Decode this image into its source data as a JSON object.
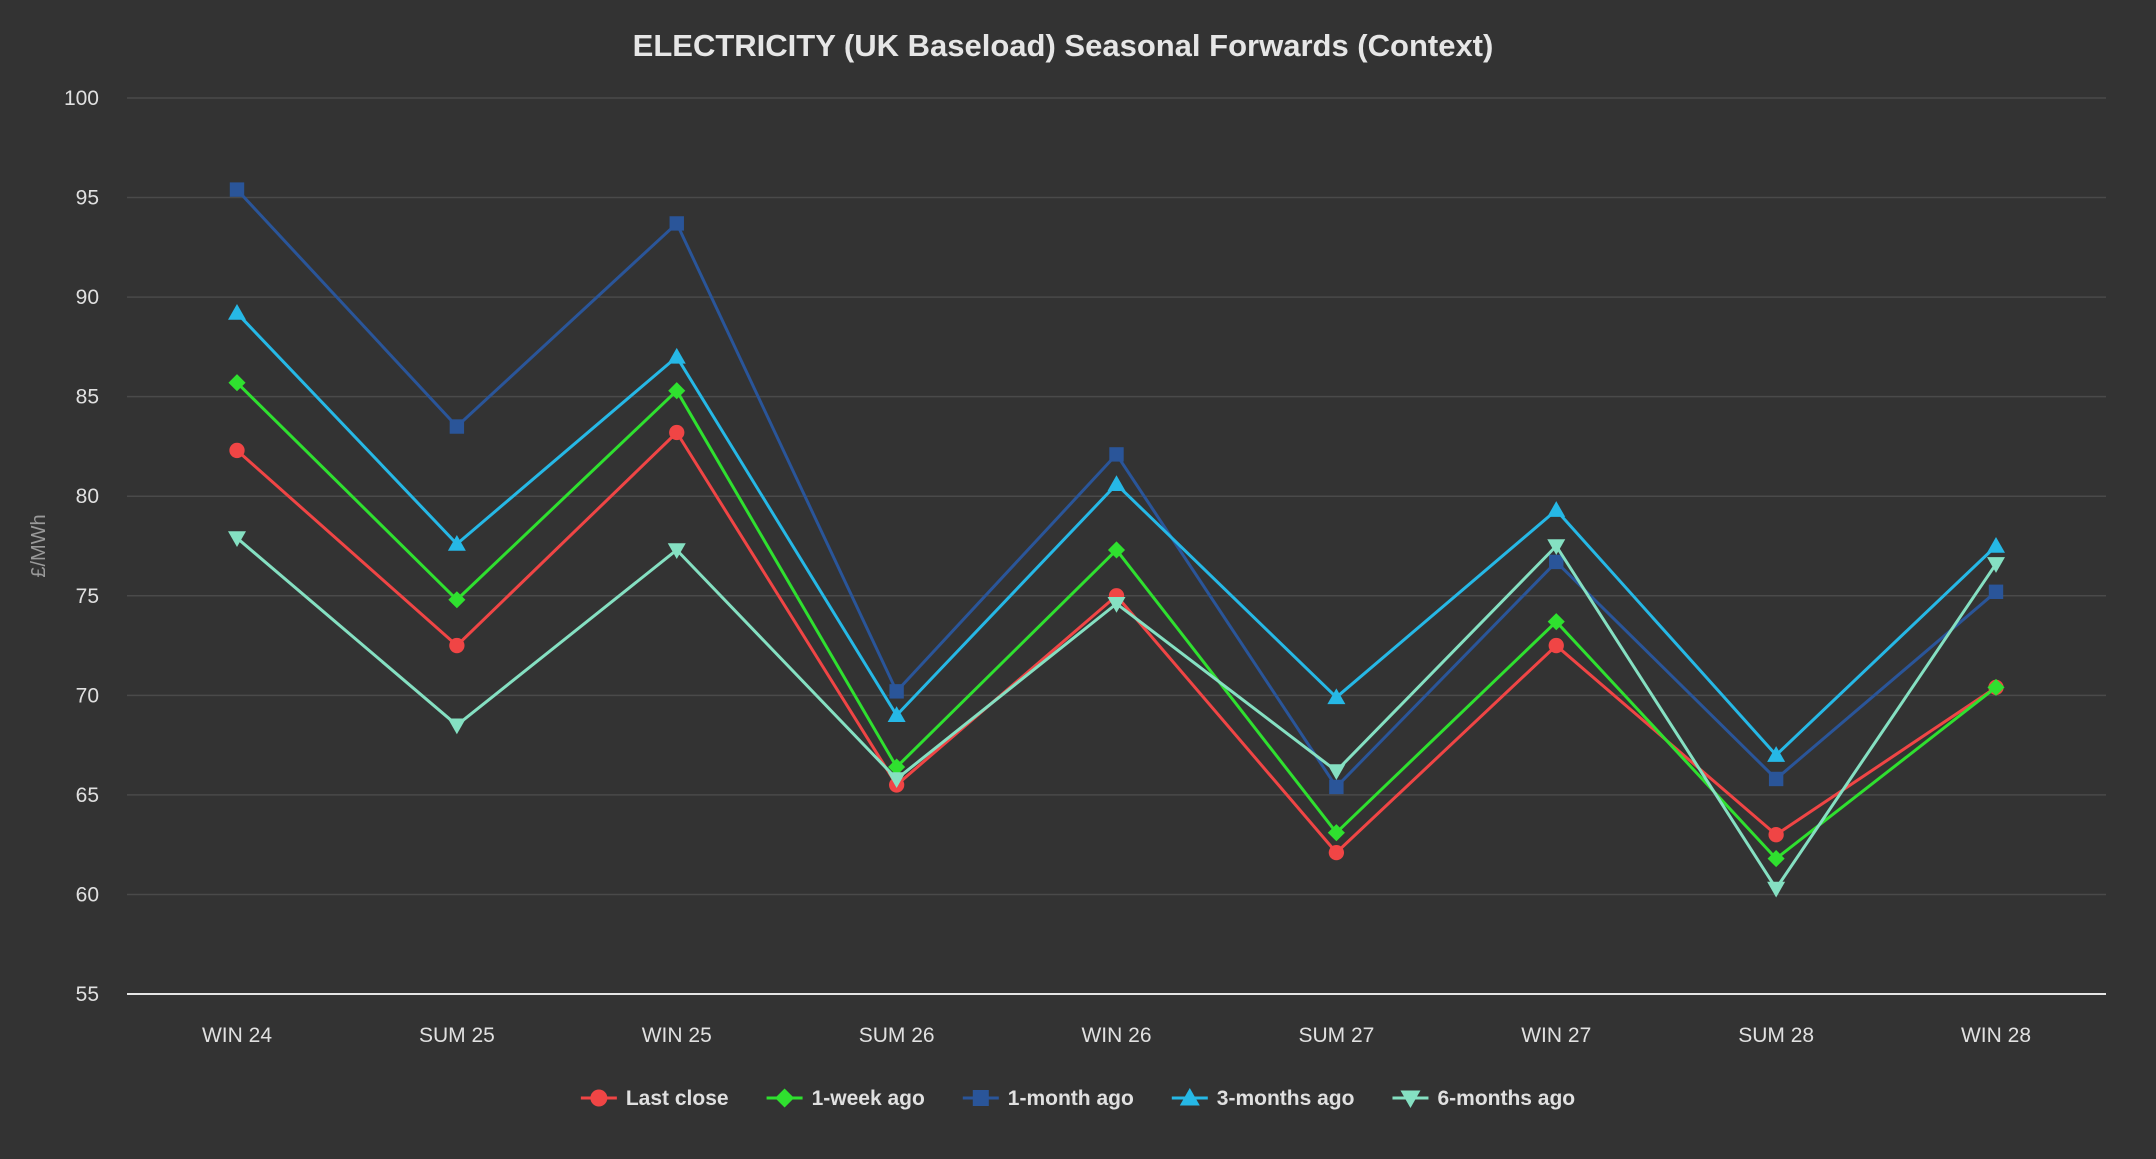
{
  "chart_data": {
    "type": "line",
    "title": "ELECTRICITY (UK Baseload) Seasonal Forwards (Context)",
    "xlabel": "",
    "ylabel": "£/MWh",
    "ylim": [
      55,
      100
    ],
    "yticks": [
      55,
      60,
      65,
      70,
      75,
      80,
      85,
      90,
      95,
      100
    ],
    "grid": true,
    "legend_position": "bottom-center",
    "categories": [
      "WIN 24",
      "SUM 25",
      "WIN 25",
      "SUM 26",
      "WIN 26",
      "SUM 27",
      "WIN 27",
      "SUM 28",
      "WIN 28"
    ],
    "series": [
      {
        "name": "Last close",
        "color": "#f04545",
        "marker": "circle",
        "values": [
          82.3,
          72.5,
          83.2,
          65.5,
          75.0,
          62.1,
          72.5,
          63.0,
          70.4
        ]
      },
      {
        "name": "1-week ago",
        "color": "#2fe02f",
        "marker": "diamond",
        "values": [
          85.7,
          74.8,
          85.3,
          66.4,
          77.3,
          63.1,
          73.7,
          61.8,
          70.4
        ]
      },
      {
        "name": "1-month ago",
        "color": "#2a5599",
        "marker": "square",
        "values": [
          95.4,
          83.5,
          93.7,
          70.2,
          82.1,
          65.4,
          76.7,
          65.8,
          75.2
        ]
      },
      {
        "name": "3-months ago",
        "color": "#26b8e6",
        "marker": "triangle-up",
        "values": [
          89.2,
          77.6,
          87.0,
          69.0,
          80.6,
          69.9,
          79.3,
          67.0,
          77.5
        ]
      },
      {
        "name": "6-months ago",
        "color": "#85e0c2",
        "marker": "triangle-down",
        "values": [
          77.9,
          68.5,
          77.3,
          65.8,
          74.6,
          66.2,
          77.5,
          60.3,
          76.6
        ]
      }
    ]
  }
}
